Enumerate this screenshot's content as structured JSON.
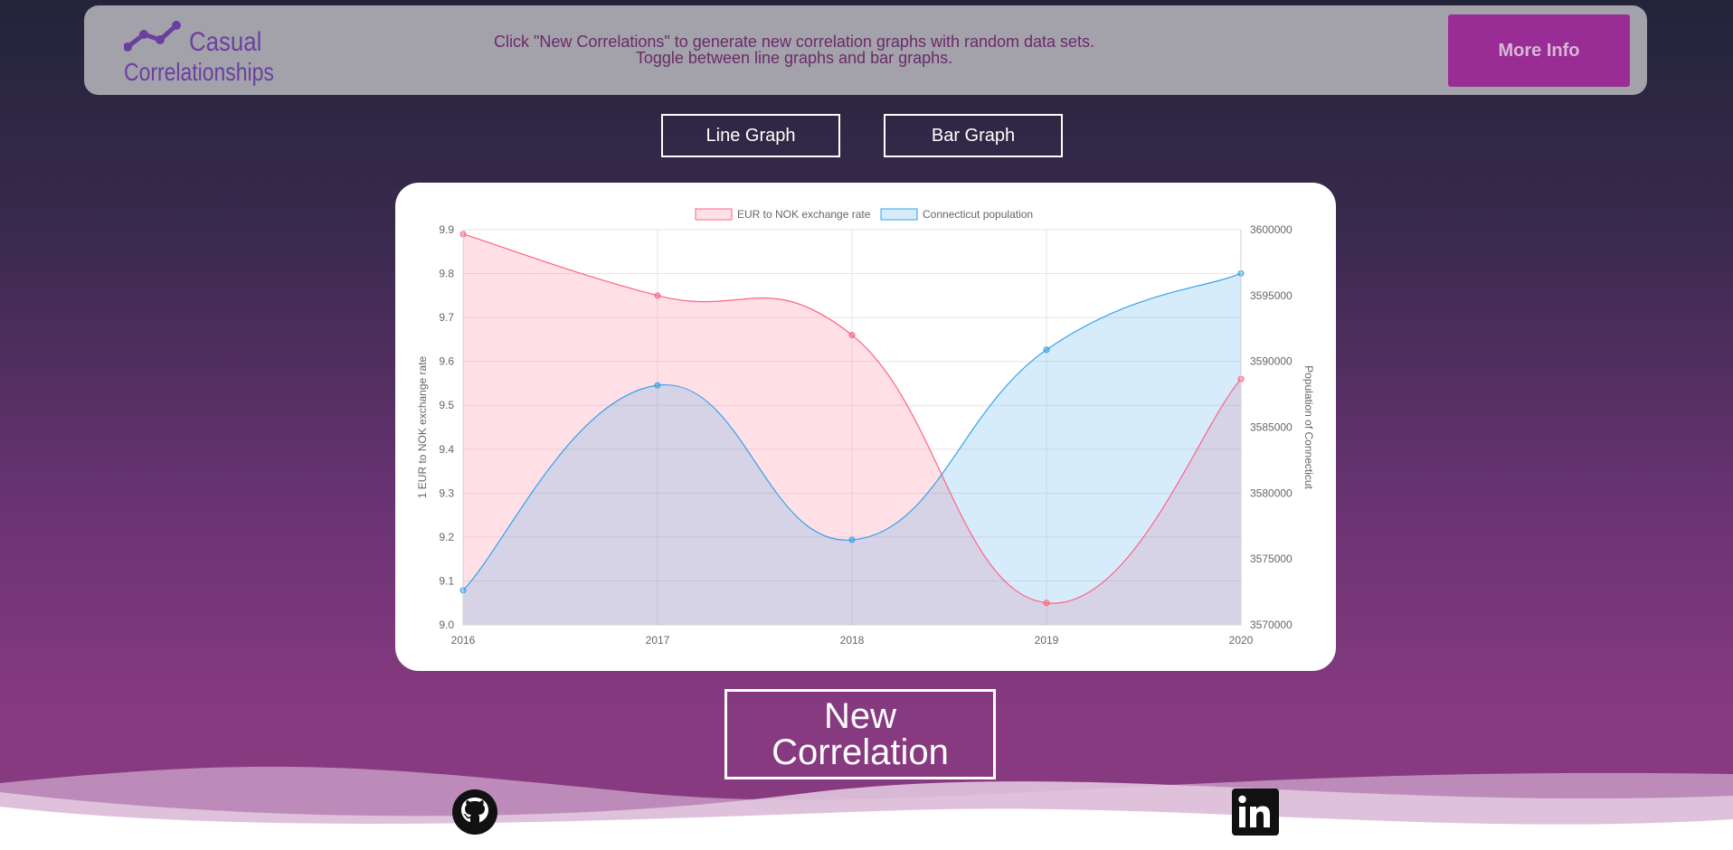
{
  "header": {
    "logo_word1": "Casual",
    "logo_word2": "Correlationships",
    "line1": "Click \"New Correlations\" to generate new correlation graphs with random data sets.",
    "line2": "Toggle between line graphs and bar graphs.",
    "more_info": "More Info"
  },
  "toggles": {
    "line": "Line Graph",
    "bar": "Bar Graph"
  },
  "new_correlation": "New Correlation",
  "footer": {
    "icons": [
      "github-icon",
      "linkedin-icon"
    ]
  },
  "colors": {
    "accent": "#992d95",
    "series1": "#ff6384",
    "series2": "#36a2eb"
  },
  "chart_data": {
    "type": "area",
    "x": [
      "2016",
      "2017",
      "2018",
      "2019",
      "2020"
    ],
    "series": [
      {
        "name": "EUR to NOK exchange rate",
        "axis": "left",
        "values": [
          9.89,
          9.75,
          9.66,
          9.05,
          9.56
        ]
      },
      {
        "name": "Connecticut population",
        "axis": "right",
        "values": [
          3572618,
          3588184,
          3576452,
          3590886,
          3596677
        ]
      }
    ],
    "ylabel_left": "1 EUR to NOK exchange rate",
    "ylabel_right": "Population of Connecticut",
    "ylim_left": [
      9.0,
      9.9
    ],
    "ylim_right": [
      3570000,
      3600000
    ],
    "yticks_left": [
      "9.9",
      "9.8",
      "9.7",
      "9.6",
      "9.5",
      "9.4",
      "9.3",
      "9.2",
      "9.1",
      "9.0"
    ],
    "yticks_right": [
      "3600000",
      "3595000",
      "3590000",
      "3585000",
      "3580000",
      "3575000",
      "3570000"
    ],
    "grid": true,
    "legend": "top-center"
  }
}
